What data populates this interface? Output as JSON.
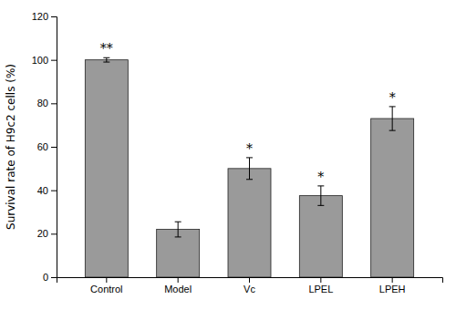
{
  "chart_data": {
    "type": "bar",
    "categories": [
      "Control",
      "Model",
      "Vc",
      "LPEL",
      "LPEH"
    ],
    "values": [
      100.0,
      22.0,
      50.0,
      37.5,
      73.0
    ],
    "errors": [
      1.0,
      3.5,
      5.0,
      4.5,
      5.5
    ],
    "color": "#9a9a9a",
    "ylim": [
      0,
      120
    ],
    "yticks": [
      0,
      20,
      40,
      60,
      80,
      100,
      120
    ],
    "ylabel": "Survival rate of H9c2 cells (%)",
    "annotations": [
      {
        "text": "**",
        "category": "Control"
      },
      {
        "text": "*",
        "category": "Vc"
      },
      {
        "text": "*",
        "category": "LPEL"
      },
      {
        "text": "*",
        "category": "LPEH"
      }
    ],
    "grid": false
  }
}
